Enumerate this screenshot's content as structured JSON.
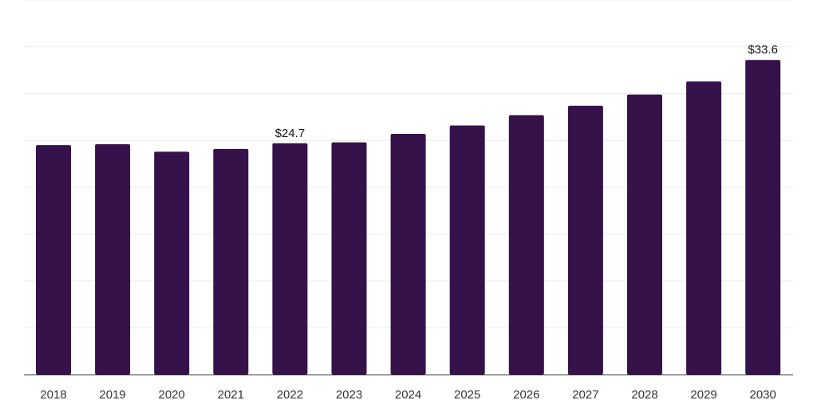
{
  "chart_data": {
    "type": "bar",
    "categories": [
      "2018",
      "2019",
      "2020",
      "2021",
      "2022",
      "2023",
      "2024",
      "2025",
      "2026",
      "2027",
      "2028",
      "2029",
      "2030"
    ],
    "values": [
      24.5,
      24.6,
      23.8,
      24.1,
      24.7,
      24.8,
      25.7,
      26.6,
      27.7,
      28.7,
      29.9,
      31.3,
      33.6
    ],
    "data_labels": {
      "2022": "$24.7",
      "2030": "$33.6"
    },
    "title": "",
    "xlabel": "",
    "ylabel": "",
    "ylim": [
      0,
      40
    ],
    "grid": true,
    "bar_color": "#36124a"
  }
}
